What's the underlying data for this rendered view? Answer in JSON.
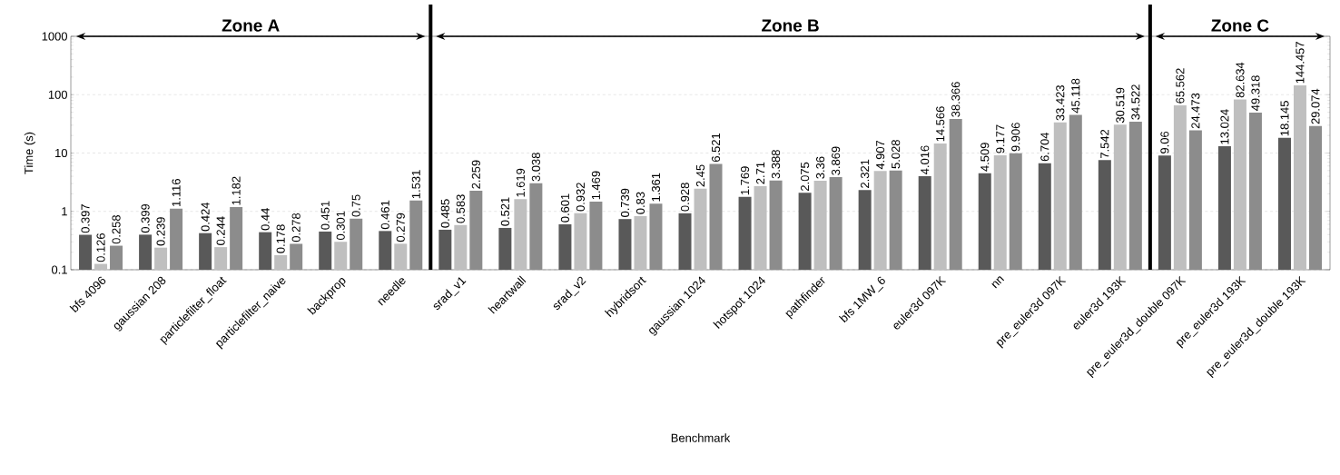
{
  "chart_data": {
    "type": "bar",
    "xlabel": "Benchmark",
    "ylabel": "Time (s)",
    "categories": [
      "bfs 4096",
      "gaussian 208",
      "particlefilter_float",
      "particlefilter_naive",
      "backprop",
      "needle",
      "srad_v1",
      "heartwall",
      "srad_v2",
      "hybridsort",
      "gaussian 1024",
      "hotspot 1024",
      "pathfinder",
      "bfs 1MW_6",
      "euler3d 097K",
      "nn",
      "pre_euler3d 097K",
      "euler3d 193K",
      "pre_euler3d_double 097K",
      "pre_euler3d 193K",
      "pre_euler3d_double 193K"
    ],
    "series": [
      {
        "color": "#595959",
        "values": [
          0.397,
          0.399,
          0.424,
          0.44,
          0.451,
          0.461,
          0.485,
          0.521,
          0.601,
          0.739,
          0.928,
          1.769,
          2.075,
          2.321,
          4.016,
          4.509,
          6.704,
          7.542,
          9.06,
          13.024,
          18.145
        ]
      },
      {
        "color": "#bfbfbf",
        "values": [
          0.126,
          0.239,
          0.244,
          0.178,
          0.301,
          0.279,
          0.583,
          1.619,
          0.932,
          0.83,
          2.45,
          2.71,
          3.36,
          4.907,
          14.566,
          9.177,
          33.423,
          30.519,
          65.562,
          82.634,
          144.457
        ]
      },
      {
        "color": "#8c8c8c",
        "values": [
          0.258,
          1.116,
          1.182,
          0.278,
          0.75,
          1.531,
          2.259,
          3.038,
          1.469,
          1.361,
          6.521,
          3.388,
          3.869,
          5.028,
          38.366,
          9.906,
          45.118,
          34.522,
          24.473,
          49.318,
          29.074
        ]
      }
    ],
    "log": "y",
    "ylim": [
      0.1,
      1000
    ],
    "yticks": [
      0.1,
      1,
      10,
      100,
      1000
    ],
    "grid": "y",
    "data_labels": true,
    "annotations": [
      "Zone A",
      "Zone B",
      "Zone C"
    ]
  }
}
